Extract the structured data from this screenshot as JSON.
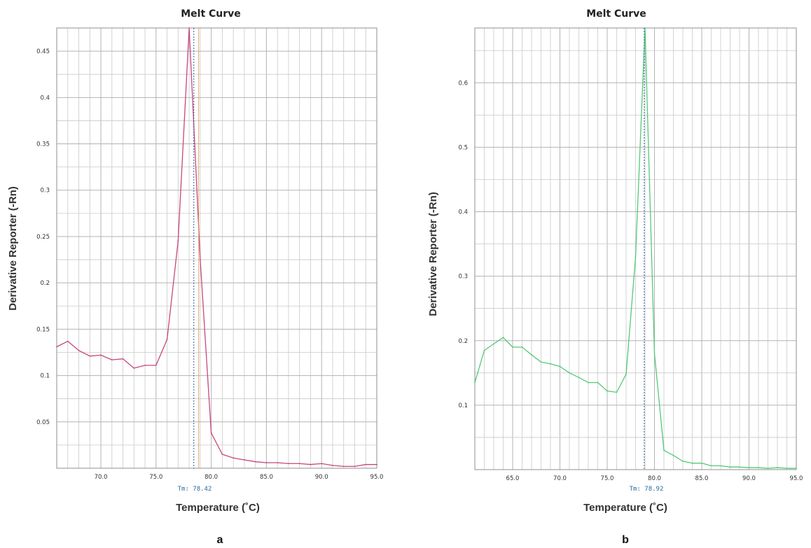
{
  "chart_data": [
    {
      "type": "line",
      "panel_label": "a",
      "title": "Melt Curve",
      "xlabel": "Temperature (˚C)",
      "ylabel": "Derivative Reporter (-Rn)",
      "xlim": [
        66.0,
        95.0
      ],
      "ylim": [
        0.0,
        0.475
      ],
      "xticks": [
        "70.0",
        "75.0",
        "80.0",
        "85.0",
        "90.0",
        "95.0"
      ],
      "yticks": [
        "0.05",
        "0.1",
        "0.15",
        "0.2",
        "0.25",
        "0.3",
        "0.35",
        "0.4",
        "0.45"
      ],
      "grid": true,
      "tm_label": "Tm: 78.42",
      "tm_value": 78.42,
      "colors": {
        "series": "#c8467e",
        "tm_line": "#2c5aa0",
        "aux_line": "#d99a4a"
      },
      "series": [
        {
          "x": [
            66,
            67,
            68,
            69,
            70,
            71,
            72,
            73,
            74,
            75,
            76,
            77,
            78,
            79,
            80,
            81,
            82,
            83,
            84,
            85,
            86,
            87,
            88,
            89,
            90,
            91,
            92,
            93,
            94,
            95
          ],
          "values": [
            0.131,
            0.137,
            0.127,
            0.121,
            0.122,
            0.117,
            0.118,
            0.108,
            0.111,
            0.111,
            0.139,
            0.245,
            0.475,
            0.225,
            0.038,
            0.015,
            0.011,
            0.009,
            0.007,
            0.006,
            0.006,
            0.005,
            0.005,
            0.004,
            0.005,
            0.003,
            0.002,
            0.002,
            0.004,
            0.004
          ]
        }
      ]
    },
    {
      "type": "line",
      "panel_label": "b",
      "title": "Melt Curve",
      "xlabel": "Temperature (˚C)",
      "ylabel": "Derivative Reporter (-Rn)",
      "xlim": [
        61.0,
        95.0
      ],
      "ylim": [
        0.0,
        0.685
      ],
      "xticks": [
        "65.0",
        "70.0",
        "75.0",
        "80.0",
        "85.0",
        "90.0",
        "95.0"
      ],
      "yticks": [
        "0.1",
        "0.2",
        "0.3",
        "0.4",
        "0.5",
        "0.6"
      ],
      "grid": true,
      "tm_label": "Tm: 78.92",
      "tm_value": 78.92,
      "colors": {
        "series": "#55c878",
        "tm_line": "#2c5aa0"
      },
      "series": [
        {
          "x": [
            61,
            62,
            63,
            64,
            65,
            66,
            67,
            68,
            69,
            70,
            71,
            72,
            73,
            74,
            75,
            76,
            77,
            78,
            79,
            80,
            81,
            82,
            83,
            84,
            85,
            86,
            87,
            88,
            89,
            90,
            91,
            92,
            93,
            94,
            95
          ],
          "values": [
            0.135,
            0.185,
            0.195,
            0.205,
            0.19,
            0.19,
            0.178,
            0.167,
            0.164,
            0.16,
            0.15,
            0.143,
            0.135,
            0.135,
            0.122,
            0.12,
            0.148,
            0.33,
            0.685,
            0.18,
            0.03,
            0.022,
            0.013,
            0.01,
            0.01,
            0.006,
            0.006,
            0.004,
            0.004,
            0.003,
            0.003,
            0.002,
            0.003,
            0.002,
            0.002
          ]
        }
      ]
    }
  ]
}
